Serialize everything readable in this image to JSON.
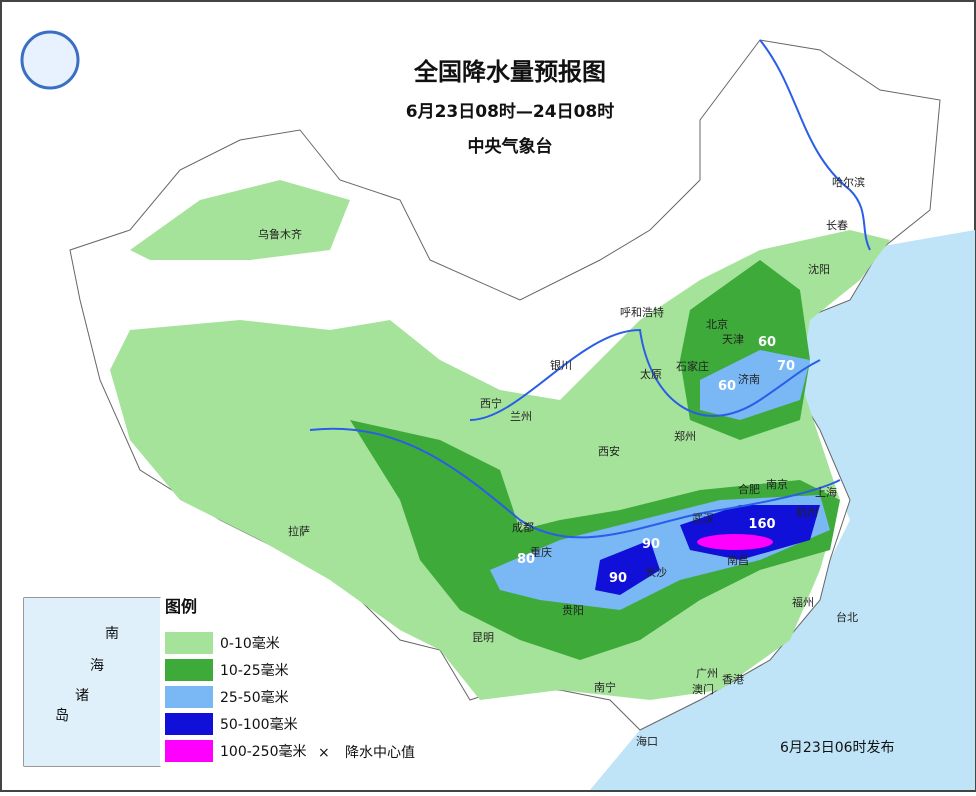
{
  "header": {
    "title": "全国降水量预报图",
    "subtitle": "6月23日08时—24日08时",
    "agency": "中央气象台"
  },
  "cities": [
    "乌鲁木齐",
    "拉萨",
    "西宁",
    "兰州",
    "银川",
    "呼和浩特",
    "太原",
    "石家庄",
    "北京",
    "天津",
    "济南",
    "郑州",
    "西安",
    "成都",
    "重庆",
    "贵阳",
    "昆明",
    "南宁",
    "长沙",
    "武汉",
    "南昌",
    "合肥",
    "南京",
    "上海",
    "杭州",
    "福州",
    "台北",
    "广州",
    "澳门",
    "香港",
    "海口",
    "沈阳",
    "长春",
    "哈尔滨"
  ],
  "rain_centers": [
    "60",
    "70",
    "60",
    "90",
    "90",
    "80",
    "160"
  ],
  "legend": {
    "title": "图例",
    "items": [
      "0-10毫米",
      "10-25毫米",
      "25-50毫米",
      "50-100毫米",
      "100-250毫米"
    ],
    "center_marker": "×",
    "center_label": "降水中心值"
  },
  "inset": {
    "labels": [
      "南",
      "海",
      "诸",
      "岛"
    ]
  },
  "footer": {
    "issued": "6月23日06时发布"
  }
}
